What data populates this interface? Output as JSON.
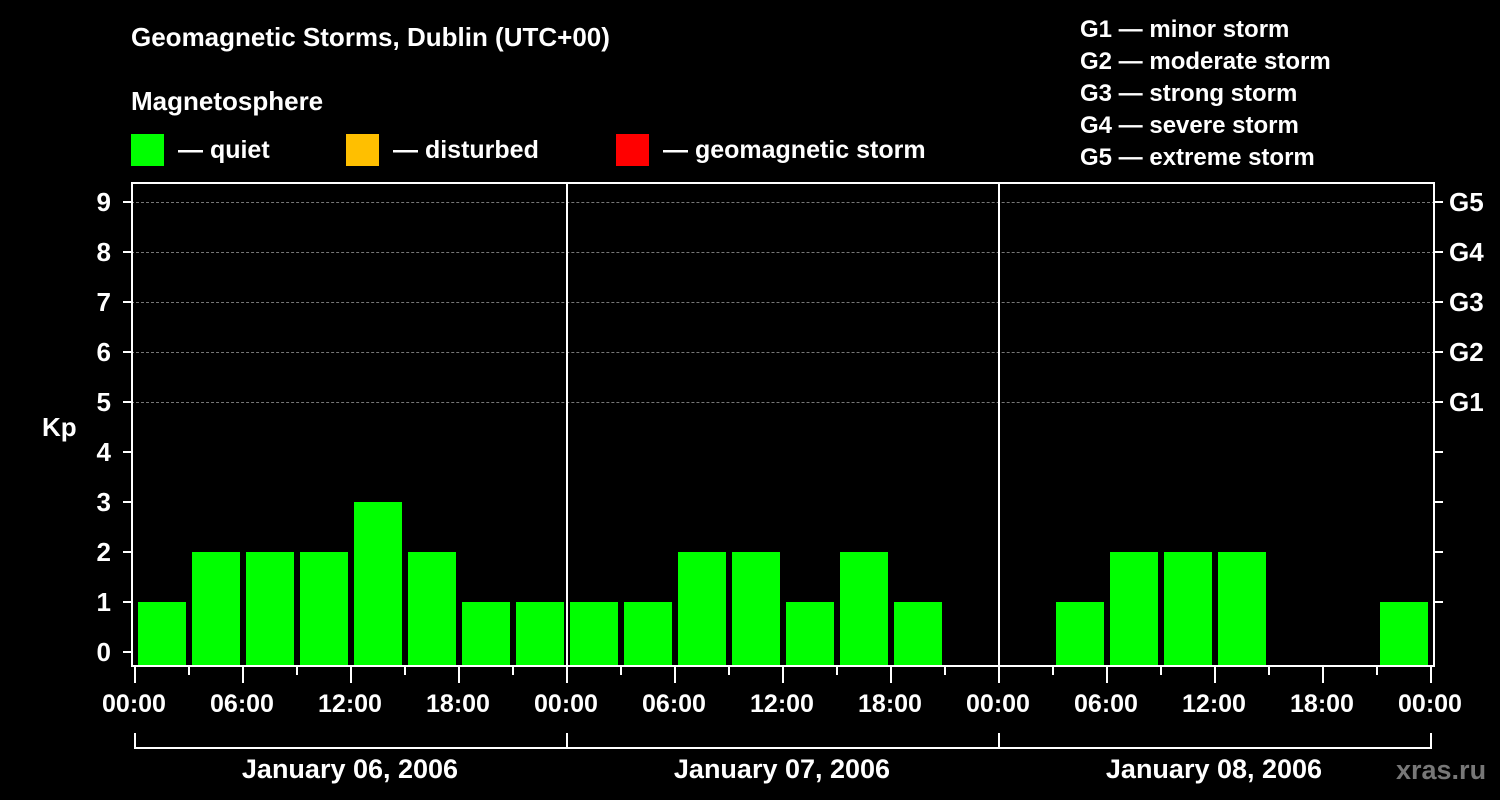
{
  "header": {
    "title": "Geomagnetic Storms, Dublin (UTC+00)",
    "subtitle": "Magnetosphere"
  },
  "legend": {
    "items": [
      {
        "label": "— quiet",
        "color": "#00ff00"
      },
      {
        "label": "— disturbed",
        "color": "#ffbf00"
      },
      {
        "label": "— geomagnetic storm",
        "color": "#ff0000"
      }
    ]
  },
  "storm_scale": [
    "G1 — minor storm",
    "G2 — moderate storm",
    "G3 — strong storm",
    "G4 — severe storm",
    "G5 — extreme storm"
  ],
  "axes": {
    "ylabel": "Kp",
    "yticks": [
      "0",
      "1",
      "2",
      "3",
      "4",
      "5",
      "6",
      "7",
      "8",
      "9"
    ],
    "right_ticks": [
      {
        "kp": 5,
        "label": "G1"
      },
      {
        "kp": 6,
        "label": "G2"
      },
      {
        "kp": 7,
        "label": "G3"
      },
      {
        "kp": 8,
        "label": "G4"
      },
      {
        "kp": 9,
        "label": "G5"
      }
    ],
    "xticks": [
      "00:00",
      "06:00",
      "12:00",
      "18:00",
      "00:00",
      "06:00",
      "12:00",
      "18:00",
      "00:00",
      "06:00",
      "12:00",
      "18:00",
      "00:00"
    ],
    "days": [
      "January 06, 2006",
      "January 07, 2006",
      "January 08, 2006"
    ]
  },
  "watermark": "xras.ru",
  "chart_data": {
    "type": "bar",
    "title": "Geomagnetic Storms, Dublin (UTC+00)",
    "subtitle": "Magnetosphere",
    "xlabel": "",
    "ylabel": "Kp",
    "ylim": [
      0,
      9
    ],
    "interval_hours": 3,
    "grid": "dashed horizontal lines at Kp 5-9",
    "categories": [
      "Jan 06 00:00",
      "Jan 06 03:00",
      "Jan 06 06:00",
      "Jan 06 09:00",
      "Jan 06 12:00",
      "Jan 06 15:00",
      "Jan 06 18:00",
      "Jan 06 21:00",
      "Jan 07 00:00",
      "Jan 07 03:00",
      "Jan 07 06:00",
      "Jan 07 09:00",
      "Jan 07 12:00",
      "Jan 07 15:00",
      "Jan 07 18:00",
      "Jan 07 21:00",
      "Jan 08 00:00",
      "Jan 08 03:00",
      "Jan 08 06:00",
      "Jan 08 09:00",
      "Jan 08 12:00",
      "Jan 08 15:00",
      "Jan 08 18:00",
      "Jan 08 21:00"
    ],
    "values": [
      1,
      2,
      2,
      2,
      3,
      2,
      1,
      1,
      1,
      1,
      2,
      2,
      1,
      2,
      1,
      null,
      null,
      1,
      2,
      2,
      2,
      null,
      null,
      1
    ],
    "bar_color": "#00ff00",
    "legend": [
      "quiet",
      "disturbed",
      "geomagnetic storm"
    ],
    "right_axis": {
      "5": "G1",
      "6": "G2",
      "7": "G3",
      "8": "G4",
      "9": "G5"
    }
  }
}
